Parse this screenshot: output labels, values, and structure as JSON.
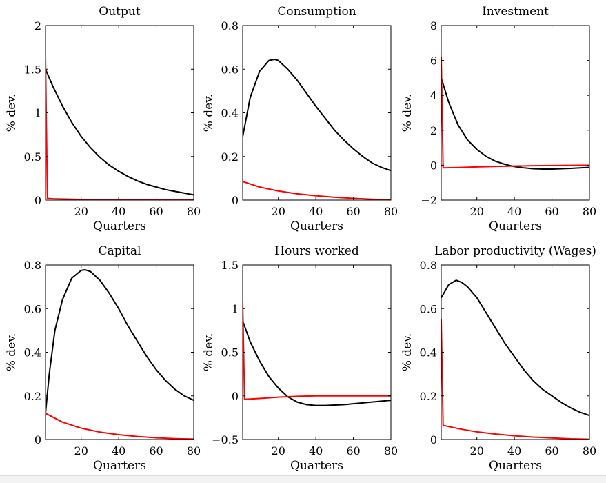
{
  "colors": {
    "baseline": "#000000",
    "alternative": "#ff0000",
    "background": "#ffffff"
  },
  "chart_data": [
    {
      "type": "line",
      "title": "Output",
      "xlabel": "Quarters",
      "ylabel": "% dev.",
      "xlim": [
        1,
        80
      ],
      "ylim": [
        0,
        2
      ],
      "xticks": [
        20,
        40,
        60,
        80
      ],
      "yticks": [
        0,
        0.5,
        1,
        1.5,
        2
      ],
      "ytick_labels": [
        "0",
        "0.5",
        "1",
        "1.5",
        "2"
      ],
      "grid": false,
      "series": [
        {
          "color": "#000000",
          "x": [
            1,
            5,
            10,
            15,
            20,
            25,
            30,
            35,
            40,
            45,
            50,
            55,
            60,
            65,
            70,
            75,
            80
          ],
          "y": [
            1.5,
            1.3,
            1.08,
            0.89,
            0.73,
            0.6,
            0.49,
            0.4,
            0.33,
            0.27,
            0.22,
            0.18,
            0.15,
            0.12,
            0.1,
            0.08,
            0.06
          ]
        },
        {
          "color": "#ff0000",
          "x": [
            1,
            2,
            5,
            20,
            40,
            60,
            80
          ],
          "y": [
            1.65,
            0.02,
            0.015,
            0.008,
            0.004,
            0.002,
            0.001
          ]
        }
      ]
    },
    {
      "type": "line",
      "title": "Consumption",
      "xlabel": "Quarters",
      "ylabel": "% dev.",
      "xlim": [
        1,
        80
      ],
      "ylim": [
        0,
        0.8
      ],
      "xticks": [
        20,
        40,
        60,
        80
      ],
      "yticks": [
        0,
        0.2,
        0.4,
        0.6,
        0.8
      ],
      "ytick_labels": [
        "0",
        "0.2",
        "0.4",
        "0.6",
        "0.8"
      ],
      "grid": false,
      "series": [
        {
          "color": "#000000",
          "x": [
            1,
            5,
            10,
            15,
            18,
            20,
            25,
            30,
            35,
            40,
            45,
            50,
            55,
            60,
            65,
            70,
            75,
            80
          ],
          "y": [
            0.29,
            0.47,
            0.59,
            0.64,
            0.645,
            0.64,
            0.6,
            0.55,
            0.49,
            0.43,
            0.375,
            0.32,
            0.275,
            0.235,
            0.2,
            0.17,
            0.15,
            0.135
          ]
        },
        {
          "color": "#ff0000",
          "x": [
            1,
            10,
            20,
            30,
            40,
            50,
            60,
            70,
            80
          ],
          "y": [
            0.085,
            0.06,
            0.042,
            0.029,
            0.02,
            0.013,
            0.008,
            0.004,
            0.001
          ]
        }
      ]
    },
    {
      "type": "line",
      "title": "Investment",
      "xlabel": "Quarters",
      "ylabel": "% dev.",
      "xlim": [
        1,
        80
      ],
      "ylim": [
        -2,
        8
      ],
      "xticks": [
        20,
        40,
        60,
        80
      ],
      "yticks": [
        -2,
        0,
        2,
        4,
        6,
        8
      ],
      "ytick_labels": [
        "−2",
        "0",
        "2",
        "4",
        "6",
        "8"
      ],
      "grid": false,
      "series": [
        {
          "color": "#000000",
          "x": [
            1,
            5,
            10,
            15,
            20,
            25,
            30,
            35,
            40,
            45,
            50,
            55,
            60,
            65,
            70,
            75,
            80
          ],
          "y": [
            5.0,
            3.6,
            2.3,
            1.45,
            0.9,
            0.5,
            0.22,
            0.05,
            -0.08,
            -0.15,
            -0.2,
            -0.22,
            -0.22,
            -0.2,
            -0.18,
            -0.15,
            -0.12
          ]
        },
        {
          "color": "#ff0000",
          "x": [
            1,
            2,
            10,
            20,
            30,
            40,
            50,
            60,
            70,
            80
          ],
          "y": [
            6.2,
            -0.15,
            -0.13,
            -0.1,
            -0.07,
            -0.05,
            -0.03,
            -0.02,
            -0.01,
            -0.005
          ]
        }
      ]
    },
    {
      "type": "line",
      "title": "Capital",
      "xlabel": "Quarters",
      "ylabel": "% dev.",
      "xlim": [
        1,
        80
      ],
      "ylim": [
        0,
        0.8
      ],
      "xticks": [
        20,
        40,
        60,
        80
      ],
      "yticks": [
        0,
        0.2,
        0.4,
        0.6,
        0.8
      ],
      "ytick_labels": [
        "0",
        "0.2",
        "0.4",
        "0.6",
        "0.8"
      ],
      "grid": false,
      "series": [
        {
          "color": "#000000",
          "x": [
            1,
            3,
            6,
            10,
            15,
            20,
            22,
            25,
            30,
            35,
            40,
            45,
            50,
            55,
            60,
            65,
            70,
            75,
            80
          ],
          "y": [
            0.12,
            0.3,
            0.5,
            0.64,
            0.74,
            0.775,
            0.778,
            0.77,
            0.73,
            0.67,
            0.6,
            0.52,
            0.45,
            0.38,
            0.32,
            0.27,
            0.23,
            0.2,
            0.18
          ]
        },
        {
          "color": "#ff0000",
          "x": [
            1,
            10,
            20,
            30,
            40,
            50,
            60,
            70,
            80
          ],
          "y": [
            0.12,
            0.08,
            0.052,
            0.034,
            0.022,
            0.014,
            0.008,
            0.004,
            0.002
          ]
        }
      ]
    },
    {
      "type": "line",
      "title": "Hours worked",
      "xlabel": "Quarters",
      "ylabel": "% dev.",
      "xlim": [
        1,
        80
      ],
      "ylim": [
        -0.5,
        1.5
      ],
      "xticks": [
        20,
        40,
        60,
        80
      ],
      "yticks": [
        -0.5,
        0,
        0.5,
        1,
        1.5
      ],
      "ytick_labels": [
        "−0.5",
        "0",
        "0.5",
        "1",
        "1.5"
      ],
      "grid": false,
      "series": [
        {
          "color": "#000000",
          "x": [
            1,
            5,
            10,
            15,
            20,
            25,
            30,
            35,
            40,
            45,
            50,
            55,
            60,
            65,
            70,
            75,
            80
          ],
          "y": [
            0.86,
            0.62,
            0.4,
            0.22,
            0.09,
            -0.01,
            -0.07,
            -0.1,
            -0.11,
            -0.11,
            -0.105,
            -0.1,
            -0.09,
            -0.08,
            -0.07,
            -0.06,
            -0.05
          ]
        },
        {
          "color": "#ff0000",
          "x": [
            1,
            2,
            10,
            20,
            30,
            40,
            50,
            60,
            70,
            80
          ],
          "y": [
            1.1,
            -0.04,
            -0.03,
            -0.015,
            -0.005,
            0.0,
            0.0,
            0.0,
            0.0,
            0.0
          ]
        }
      ]
    },
    {
      "type": "line",
      "title": "Labor productivity (Wages)",
      "xlabel": "Quarters",
      "ylabel": "% dev.",
      "xlim": [
        1,
        80
      ],
      "ylim": [
        0,
        0.8
      ],
      "xticks": [
        20,
        40,
        60,
        80
      ],
      "yticks": [
        0,
        0.2,
        0.4,
        0.6,
        0.8
      ],
      "ytick_labels": [
        "0",
        "0.2",
        "0.4",
        "0.6",
        "0.8"
      ],
      "grid": false,
      "series": [
        {
          "color": "#000000",
          "x": [
            1,
            5,
            9,
            12,
            15,
            20,
            25,
            30,
            35,
            40,
            45,
            50,
            55,
            60,
            65,
            70,
            75,
            80
          ],
          "y": [
            0.65,
            0.71,
            0.73,
            0.72,
            0.7,
            0.65,
            0.58,
            0.51,
            0.44,
            0.38,
            0.32,
            0.27,
            0.23,
            0.2,
            0.17,
            0.145,
            0.125,
            0.11
          ]
        },
        {
          "color": "#ff0000",
          "x": [
            1,
            2,
            10,
            20,
            30,
            40,
            50,
            60,
            70,
            80
          ],
          "y": [
            0.55,
            0.065,
            0.05,
            0.035,
            0.025,
            0.017,
            0.011,
            0.007,
            0.003,
            0.001
          ]
        }
      ]
    }
  ]
}
